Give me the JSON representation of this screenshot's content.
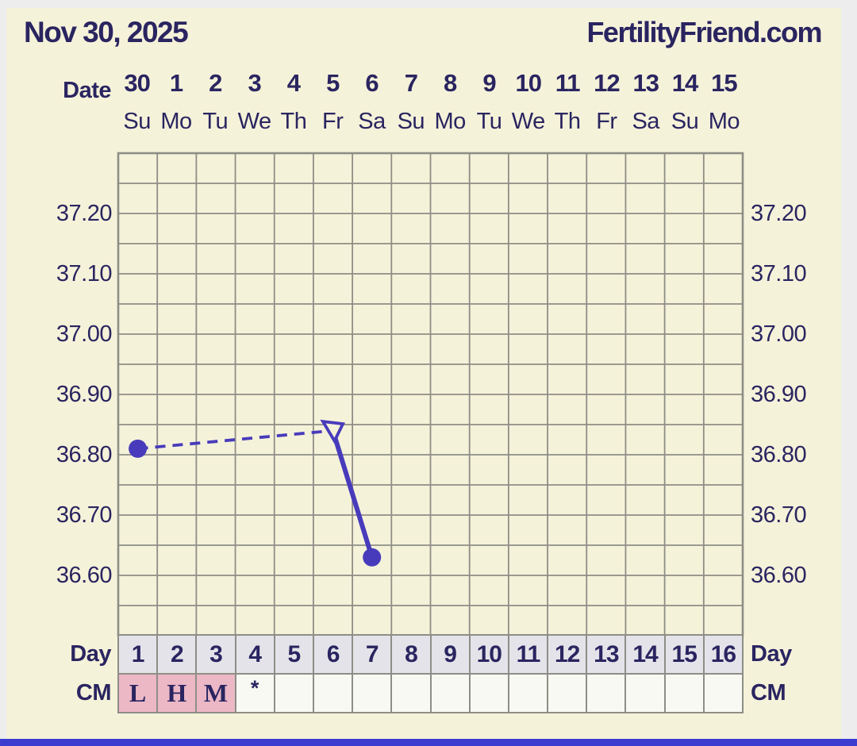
{
  "header": {
    "title": "Nov 30, 2025",
    "site": "FertilityFriend.com"
  },
  "axis_labels": {
    "date": "Date",
    "day": "Day",
    "cm": "CM"
  },
  "colors": {
    "background": "#f5f2da",
    "gutter": "#ededed",
    "text_navy": "#2a2560",
    "grid_line": "#8e8e86",
    "series": "#483bbb",
    "day_cell": "#e4e3e9",
    "cm_pink": "#ecb8c6",
    "cm_empty": "#f8f9f2",
    "bottom_bar": "#3c3cd1"
  },
  "chart_data": {
    "type": "line",
    "title": "Basal body temperature chart starting Nov 30, 2025",
    "x_axis": {
      "label": "Date",
      "dates": [
        "30",
        "1",
        "2",
        "3",
        "4",
        "5",
        "6",
        "7",
        "8",
        "9",
        "10",
        "11",
        "12",
        "13",
        "14",
        "15"
      ],
      "weekdays": [
        "Su",
        "Mo",
        "Tu",
        "We",
        "Th",
        "Fr",
        "Sa",
        "Su",
        "Mo",
        "Tu",
        "We",
        "Th",
        "Fr",
        "Sa",
        "Su",
        "Mo"
      ],
      "cycle_days": [
        "1",
        "2",
        "3",
        "4",
        "5",
        "6",
        "7",
        "8",
        "9",
        "10",
        "11",
        "12",
        "13",
        "14",
        "15",
        "16"
      ]
    },
    "y_axis": {
      "unit": "C",
      "ticks": [
        37.2,
        37.1,
        37.0,
        36.9,
        36.8,
        36.7,
        36.6
      ],
      "ylim": [
        36.5,
        37.3
      ],
      "grid_step": 0.05,
      "mirrored": true,
      "grid": true
    },
    "series": [
      {
        "name": "temperature",
        "points": [
          {
            "cycle_day": 1,
            "temp": 36.81,
            "marker": "dot"
          },
          {
            "cycle_day": 6,
            "temp": 36.84,
            "marker": "open_triangle"
          },
          {
            "cycle_day": 7,
            "temp": 36.63,
            "marker": "dot"
          }
        ],
        "segments": [
          {
            "from_day": 1,
            "to_day": 6,
            "style": "dashed"
          },
          {
            "from_day": 6,
            "to_day": 7,
            "style": "solid"
          }
        ]
      }
    ],
    "cm_row": {
      "label": "CM",
      "cells": [
        {
          "label": "L",
          "flag": "pink"
        },
        {
          "label": "H",
          "flag": "pink"
        },
        {
          "label": "M",
          "flag": "pink"
        },
        {
          "label": "*",
          "flag": "none"
        },
        {
          "label": "",
          "flag": "none"
        },
        {
          "label": "",
          "flag": "none"
        },
        {
          "label": "",
          "flag": "none"
        },
        {
          "label": "",
          "flag": "none"
        },
        {
          "label": "",
          "flag": "none"
        },
        {
          "label": "",
          "flag": "none"
        },
        {
          "label": "",
          "flag": "none"
        },
        {
          "label": "",
          "flag": "none"
        },
        {
          "label": "",
          "flag": "none"
        },
        {
          "label": "",
          "flag": "none"
        },
        {
          "label": "",
          "flag": "none"
        },
        {
          "label": "",
          "flag": "none"
        }
      ]
    }
  }
}
